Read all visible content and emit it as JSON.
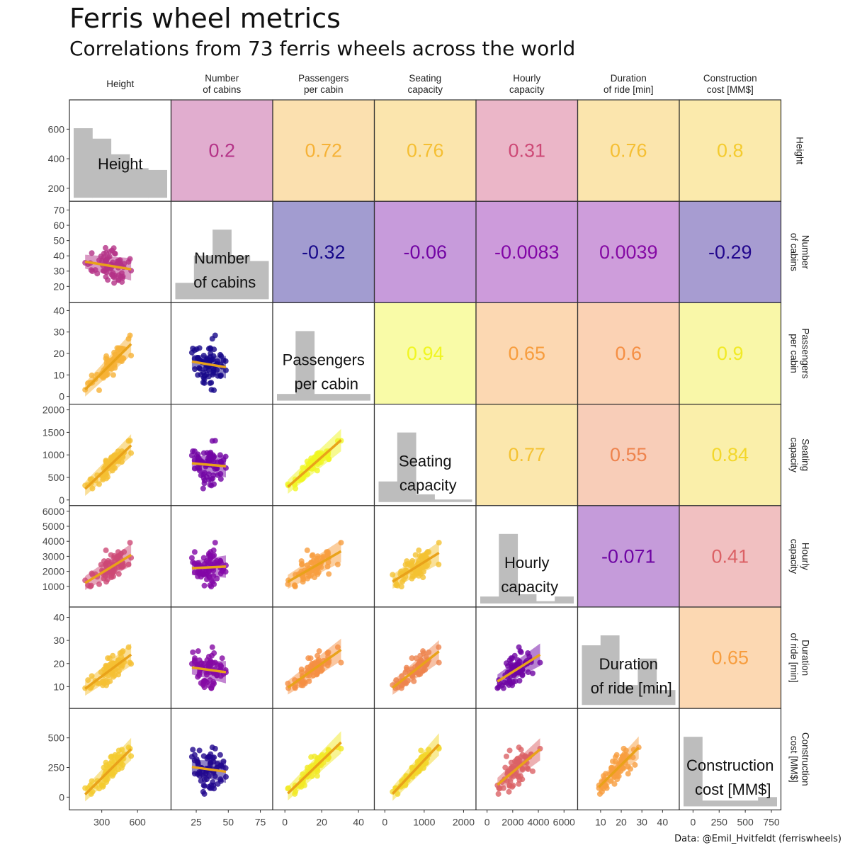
{
  "title": "Ferris wheel metrics",
  "subtitle": "Correlations from 73 ferris wheels across the world",
  "caption": "Data: @Emil_Hvitfeldt (ferriswheels)",
  "chart_data": {
    "type": "scatter-matrix",
    "n": 73,
    "variables": [
      {
        "key": "height",
        "label": [
          "Height"
        ],
        "range": [
          100,
          810
        ],
        "xticks": [
          300,
          600
        ],
        "yticks": [
          200,
          400,
          600
        ],
        "yrange": [
          150,
          760
        ],
        "hist": [
          2,
          1.7,
          1.25,
          0.85,
          0.8
        ]
      },
      {
        "key": "cabins",
        "label": [
          "Number",
          "of cabins"
        ],
        "range": [
          12,
          78
        ],
        "xticks": [
          25,
          50,
          75
        ],
        "yticks": [
          20,
          30,
          40,
          50,
          60,
          70
        ],
        "yrange": [
          13,
          72
        ],
        "hist": [
          0.6,
          1.6,
          2.55,
          1.6,
          1.4
        ]
      },
      {
        "key": "ppc",
        "label": [
          "Passengers",
          "per cabin"
        ],
        "range": [
          -2,
          44
        ],
        "xticks": [
          0,
          20,
          40
        ],
        "yticks": [
          0,
          10,
          20,
          30,
          40
        ],
        "yrange": [
          -1,
          41
        ],
        "hist": [
          0.25,
          2.6,
          0.25,
          0.25,
          0.25
        ]
      },
      {
        "key": "seating",
        "label": [
          "Seating",
          "capacity"
        ],
        "range": [
          -50,
          2100
        ],
        "xticks": [
          0,
          1000,
          2000
        ],
        "yticks": [
          0,
          500,
          1000,
          1500,
          2000
        ],
        "yrange": [
          0,
          2000
        ],
        "hist": [
          0.8,
          2.7,
          0.3,
          0.1,
          0.1
        ]
      },
      {
        "key": "hourly",
        "label": [
          "Hourly",
          "capacity"
        ],
        "range": [
          -200,
          6400
        ],
        "xticks": [
          0,
          2000,
          4000,
          6000
        ],
        "yticks": [
          1000,
          2000,
          3000,
          4000,
          5000,
          6000
        ],
        "yrange": [
          0,
          6000
        ],
        "hist": [
          0.3,
          3.0,
          0.4,
          0.1,
          0.3
        ]
      },
      {
        "key": "duration",
        "label": [
          "Duration",
          "of ride [min]"
        ],
        "range": [
          3,
          44
        ],
        "xticks": [
          10,
          20,
          30,
          40
        ],
        "yticks": [
          10,
          20,
          30,
          40
        ],
        "yrange": [
          3,
          42
        ],
        "hist": [
          1.8,
          2.1,
          0.6,
          1.4,
          0.45
        ]
      },
      {
        "key": "cost",
        "label": [
          "Construction",
          "cost [MM$]"
        ],
        "range": [
          -50,
          760
        ],
        "xticks": [
          0,
          250,
          500,
          750
        ],
        "yticks": [
          0,
          250,
          500
        ],
        "yrange": [
          -60,
          700
        ],
        "hist": [
          3.0,
          0.25,
          0.25,
          0.25,
          0.4
        ]
      }
    ],
    "correlations": [
      [
        null,
        0.2,
        0.72,
        0.76,
        0.31,
        0.76,
        0.8
      ],
      [
        null,
        null,
        -0.32,
        -0.06,
        -0.0083,
        0.0039,
        -0.29
      ],
      [
        null,
        null,
        null,
        0.94,
        0.65,
        0.6,
        0.9
      ],
      [
        null,
        null,
        null,
        null,
        0.77,
        0.55,
        0.84
      ],
      [
        null,
        null,
        null,
        null,
        null,
        -0.071,
        0.41
      ],
      [
        null,
        null,
        null,
        null,
        null,
        null,
        0.65
      ]
    ],
    "correlation_labels": [
      [
        null,
        "0.2",
        "0.72",
        "0.76",
        "0.31",
        "0.76",
        "0.8"
      ],
      [
        null,
        null,
        "-0.32",
        "-0.06",
        "-0.0083",
        "0.0039",
        "-0.29"
      ],
      [
        null,
        null,
        null,
        "0.94",
        "0.65",
        "0.6",
        "0.9"
      ],
      [
        null,
        null,
        null,
        null,
        "0.77",
        "0.55",
        "0.84"
      ],
      [
        null,
        null,
        null,
        null,
        null,
        "-0.071",
        "0.41"
      ],
      [
        null,
        null,
        null,
        null,
        null,
        null,
        "0.65"
      ]
    ],
    "color_scale": "plasma (dark blue = negative, purple/magenta = ~0, orange/yellow = strongly positive)",
    "fit_line_color": "#e9a21a",
    "point_color_by_correlation": true
  }
}
